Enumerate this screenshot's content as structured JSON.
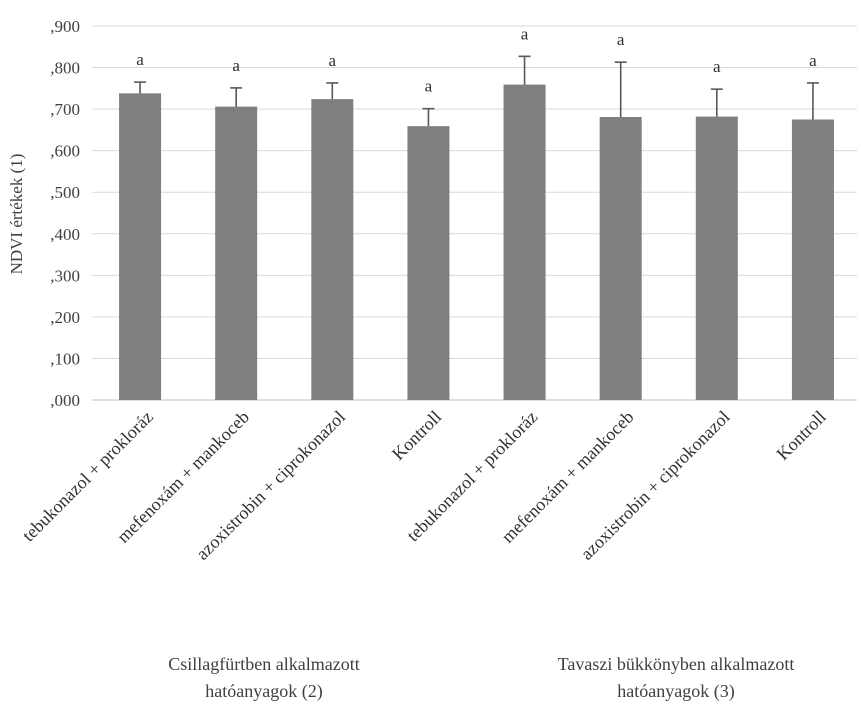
{
  "chart_data": {
    "type": "bar",
    "ylabel": "NDVI értékek (1)",
    "ylim": [
      0,
      0.9
    ],
    "yticks": [
      ",000",
      ",100",
      ",200",
      ",300",
      ",400",
      ",500",
      ",600",
      ",700",
      ",800",
      ",900"
    ],
    "categories": [
      "tebukonazol + prokloráz",
      "mefenoxám + mankoceb",
      "azoxistrobin + ciprokonazol",
      "Kontroll",
      "tebukonazol + prokloráz",
      "mefenoxám + mankoceb",
      "azoxistrobin + ciprokonazol",
      "Kontroll"
    ],
    "values": [
      0.738,
      0.706,
      0.724,
      0.659,
      0.759,
      0.681,
      0.682,
      0.675
    ],
    "errors": [
      0.027,
      0.045,
      0.039,
      0.042,
      0.068,
      0.132,
      0.066,
      0.088
    ],
    "significance": [
      "a",
      "a",
      "a",
      "a",
      "a",
      "a",
      "a",
      "a"
    ],
    "bar_color": "#7f7f7f",
    "error_color": "#595959",
    "groups": [
      {
        "line1": "Csillagfürtben alkalmazott",
        "line2": "hatóanyagok (2)"
      },
      {
        "line1": "Tavaszi bükkönyben alkalmazott",
        "line2": "hatóanyagok (3)"
      }
    ],
    "grid": true,
    "legend": "none"
  }
}
